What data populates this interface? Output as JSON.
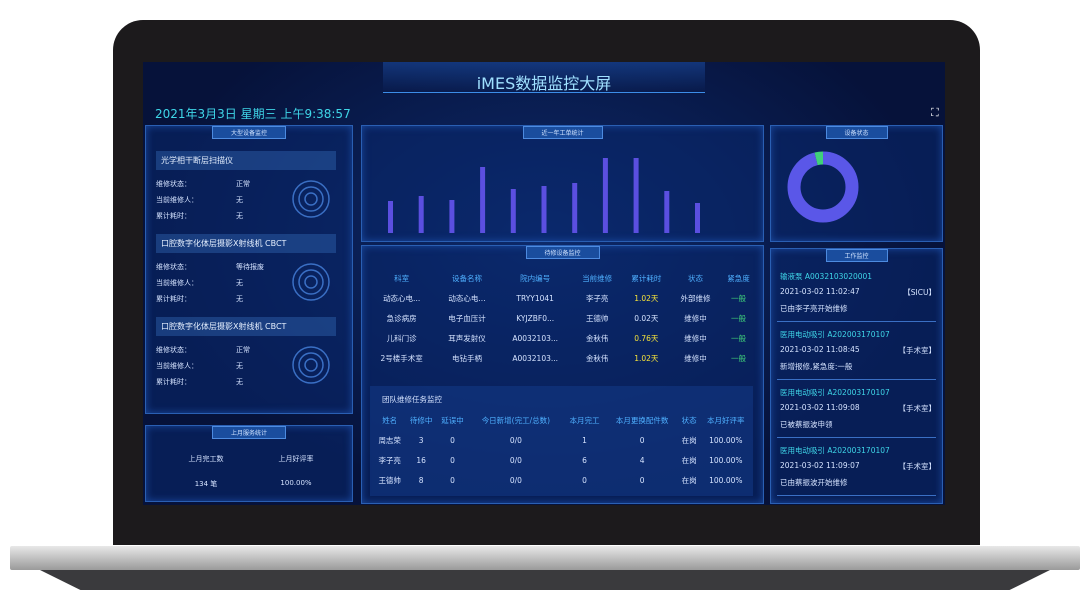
{
  "header": {
    "title": "iMES数据监控大屏",
    "datetime": "2021年3月3日 星期三 上午9:38:57"
  },
  "device_monitor": {
    "title": "大型设备监控",
    "devices": [
      {
        "name": "光学相干断层扫描仪",
        "fields": [
          [
            "维修状态：",
            "正常"
          ],
          [
            "当前维修人：",
            "无"
          ],
          [
            "累计耗时：",
            "无"
          ]
        ]
      },
      {
        "name": "口腔数字化体层摄影X射线机 CBCT",
        "fields": [
          [
            "维修状态：",
            "等待报废"
          ],
          [
            "当前维修人：",
            "无"
          ],
          [
            "累计耗时：",
            "无"
          ]
        ]
      },
      {
        "name": "口腔数字化体层摄影X射线机 CBCT",
        "fields": [
          [
            "维修状态：",
            "正常"
          ],
          [
            "当前维修人：",
            "无"
          ],
          [
            "累计耗时：",
            "无"
          ]
        ]
      }
    ]
  },
  "service_stats": {
    "title": "上月服务统计",
    "headers": [
      "上月完工数",
      "上月好评率"
    ],
    "values": [
      "134 笔",
      "100.00%"
    ]
  },
  "work_order_chart": {
    "title": "近一年工单统计",
    "color": "#5b4fe0",
    "values": [
      32,
      37,
      33,
      66,
      44,
      47,
      50,
      75,
      75,
      42,
      30
    ]
  },
  "device_status": {
    "title": "设备状态",
    "colors": [
      "#5a57e8",
      "#3fd07a"
    ],
    "values": [
      96,
      4
    ]
  },
  "pending_devices": {
    "title": "待修设备监控",
    "headers": [
      "科室",
      "设备名称",
      "院内编号",
      "当前维修",
      "累计耗时",
      "状态",
      "紧急度"
    ],
    "rows": [
      [
        "动态心电...",
        "动态心电...",
        "TRYY1041",
        "李子亮",
        "1.02天",
        "外部维修",
        "一般"
      ],
      [
        "急诊病房",
        "电子血压计",
        "KYJZBF0...",
        "王德帅",
        "0.02天",
        "维修中",
        "一般"
      ],
      [
        "儿科门诊",
        "耳声发射仪",
        "A0032103...",
        "金秋伟",
        "0.76天",
        "维修中",
        "一般"
      ],
      [
        "2号楼手术室",
        "电钻手柄",
        "A0032103...",
        "金秋伟",
        "1.02天",
        "维修中",
        "一般"
      ]
    ]
  },
  "team_tasks": {
    "title": "团队维修任务监控",
    "headers": [
      "姓名",
      "待修中",
      "延误中",
      "今日新增(完工/总数)",
      "本月完工",
      "本月更换配件数",
      "状态",
      "本月好评率"
    ],
    "rows": [
      [
        "周志荣",
        "3",
        "0",
        "0/0",
        "1",
        "0",
        "在岗",
        "100.00%"
      ],
      [
        "李子亮",
        "16",
        "0",
        "0/0",
        "6",
        "4",
        "在岗",
        "100.00%"
      ],
      [
        "王德帅",
        "8",
        "0",
        "0/0",
        "0",
        "0",
        "在岗",
        "100.00%"
      ]
    ]
  },
  "work_monitor": {
    "title": "工作监控",
    "items": [
      {
        "title": "输液泵 A0032103020001",
        "time": "2021-03-02 11:02:47",
        "place": "【SICU】",
        "desc": "已由李子亮开始维修"
      },
      {
        "title": "医用电动吸引 A202003170107",
        "time": "2021-03-02 11:08:45",
        "place": "【手术室】",
        "desc": "新增报修,紧急度:一般"
      },
      {
        "title": "医用电动吸引 A202003170107",
        "time": "2021-03-02 11:09:08",
        "place": "【手术室】",
        "desc": "已被蔡振波申领"
      },
      {
        "title": "医用电动吸引 A202003170107",
        "time": "2021-03-02 11:09:07",
        "place": "【手术室】",
        "desc": "已由蔡振波开始维修"
      }
    ]
  }
}
